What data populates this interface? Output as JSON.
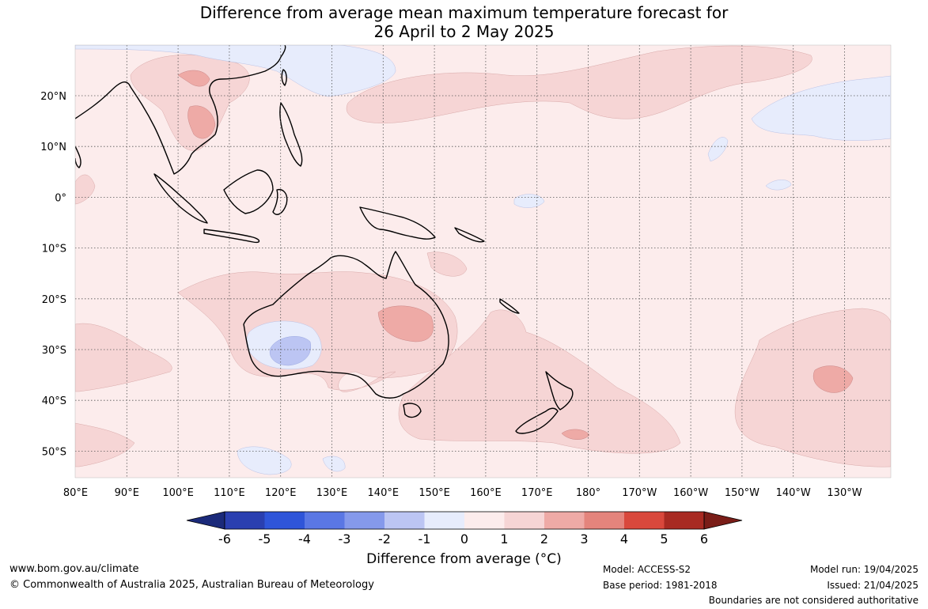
{
  "title": {
    "line1": "Difference from average mean maximum temperature forecast for",
    "line2": "26 April to 2 May 2025"
  },
  "map": {
    "region": "Indo-Pacific, 80°E to 120°W, 30°N to 55°S",
    "dominant_anomaly": "0 to 1 °C above average across most of the domain",
    "notable_warm_areas": [
      "Indochina (2 to 3)",
      "central Australia (2 to 3)",
      "ocean east of New Zealand (2 to 3)"
    ],
    "notable_cool_areas": [
      "southwest Western Australia (-1 to -2)"
    ],
    "x_axis_labels": [
      "80°E",
      "90°E",
      "100°E",
      "110°E",
      "120°E",
      "130°E",
      "140°E",
      "150°E",
      "160°E",
      "170°E",
      "180°",
      "170°W",
      "160°W",
      "150°W",
      "140°W",
      "130°W"
    ],
    "y_axis_labels": [
      "20°N",
      "10°N",
      "0°",
      "10°S",
      "20°S",
      "30°S",
      "40°S",
      "50°S"
    ]
  },
  "colorbar": {
    "title": "Difference from average (°C)",
    "ticks": [
      "-6",
      "-5",
      "-4",
      "-3",
      "-2",
      "-1",
      "0",
      "1",
      "2",
      "3",
      "4",
      "5",
      "6"
    ],
    "colors": [
      "#1b2a7a",
      "#2a3fb0",
      "#2f55d9",
      "#5a77e4",
      "#8599eb",
      "#bcc5f3",
      "#e7ecfc",
      "#fcecec",
      "#f6d5d5",
      "#eeaaa6",
      "#e4847c",
      "#d9483c",
      "#a82a22",
      "#7a1d18"
    ],
    "units": "°C"
  },
  "footer": {
    "website": "www.bom.gov.au/climate",
    "copyright": "© Commonwealth of Australia 2025, Australian Bureau of Meteorology",
    "model": "Model: ACCESS-S2",
    "base_period": "Base period: 1981-2018",
    "model_run": "Model run: 19/04/2025",
    "issued": "Issued: 21/04/2025",
    "disclaimer": "Boundaries are not considered authoritative"
  }
}
